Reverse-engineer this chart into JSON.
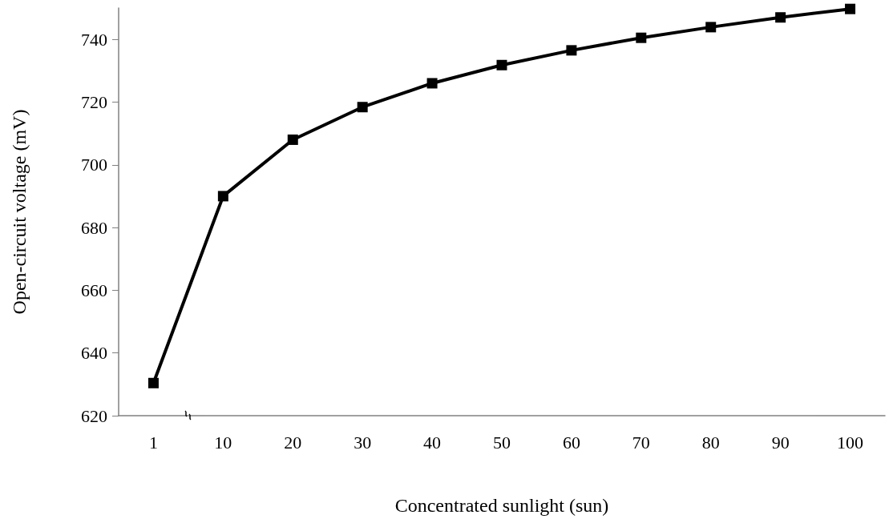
{
  "chart_data": {
    "type": "line",
    "xlabel": "Concentrated sunlight (sun)",
    "ylabel": "Open-circuit voltage (mV)",
    "categories": [
      "1",
      "10",
      "20",
      "30",
      "40",
      "50",
      "60",
      "70",
      "80",
      "90",
      "100"
    ],
    "series": [
      {
        "color": "#000000",
        "values": [
          630.4,
          690,
          708,
          718.4,
          726,
          731.8,
          736.5,
          740.5,
          743.9,
          747,
          749.7
        ]
      }
    ],
    "ylim": [
      620,
      750
    ],
    "yticks": [
      620,
      640,
      660,
      680,
      700,
      720,
      740
    ],
    "grid": false,
    "marker": "square",
    "line_style": "solid"
  }
}
